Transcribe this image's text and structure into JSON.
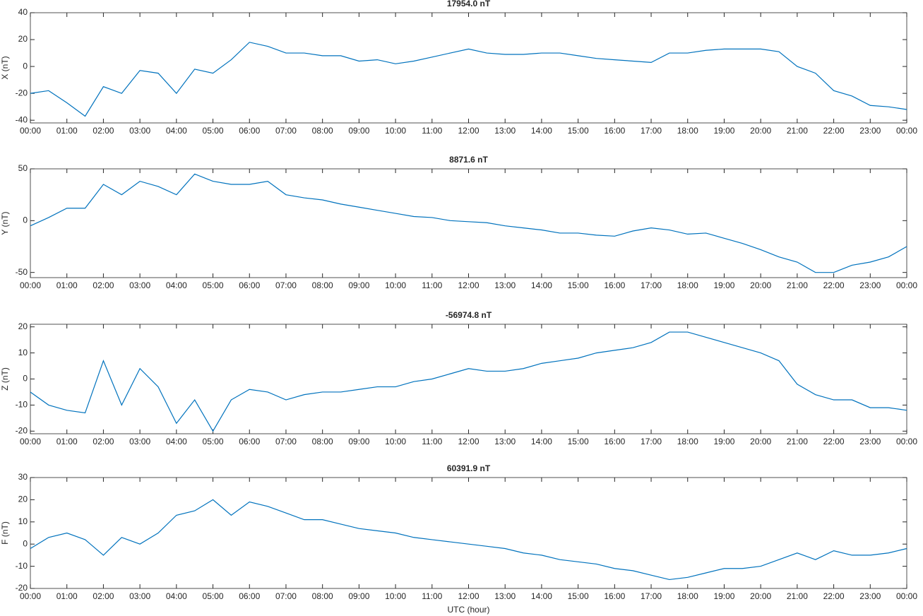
{
  "chart_data": [
    {
      "type": "line",
      "title": "17954.0 nT",
      "y_label": "X (nT)",
      "color": "#0072bd",
      "x": [
        0,
        0.5,
        1,
        1.5,
        2,
        2.5,
        3,
        3.5,
        4,
        4.5,
        5,
        5.5,
        6,
        6.5,
        7,
        7.5,
        8,
        8.5,
        9,
        9.5,
        10,
        10.5,
        11,
        11.5,
        12,
        12.5,
        13,
        13.5,
        14,
        14.5,
        15,
        15.5,
        16,
        16.5,
        17,
        17.5,
        18,
        18.5,
        19,
        19.5,
        20,
        20.5,
        21,
        21.5,
        22,
        22.5,
        23,
        23.5,
        24
      ],
      "values": [
        -20,
        -18,
        -27,
        -37,
        -15,
        -20,
        -3,
        -5,
        -20,
        -2,
        -5,
        5,
        18,
        15,
        10,
        10,
        8,
        8,
        4,
        5,
        2,
        4,
        7,
        10,
        13,
        10,
        9,
        9,
        10,
        10,
        8,
        6,
        5,
        4,
        3,
        10,
        10,
        12,
        13,
        13,
        13,
        11,
        0,
        -5,
        -18,
        -22,
        -29,
        -30,
        -32
      ],
      "xlim": [
        0,
        24
      ],
      "ylim": [
        -42,
        40
      ],
      "yticks": [
        -40,
        -20,
        0,
        20,
        40
      ],
      "xticks": [
        {
          "value": 0,
          "label": "00:00"
        },
        {
          "value": 1,
          "label": "01:00"
        },
        {
          "value": 2,
          "label": "02:00"
        },
        {
          "value": 3,
          "label": "03:00"
        },
        {
          "value": 4,
          "label": "04:00"
        },
        {
          "value": 5,
          "label": "05:00"
        },
        {
          "value": 6,
          "label": "06:00"
        },
        {
          "value": 7,
          "label": "07:00"
        },
        {
          "value": 8,
          "label": "08:00"
        },
        {
          "value": 9,
          "label": "09:00"
        },
        {
          "value": 10,
          "label": "10:00"
        },
        {
          "value": 11,
          "label": "11:00"
        },
        {
          "value": 12,
          "label": "12:00"
        },
        {
          "value": 13,
          "label": "13:00"
        },
        {
          "value": 14,
          "label": "14:00"
        },
        {
          "value": 15,
          "label": "15:00"
        },
        {
          "value": 16,
          "label": "16:00"
        },
        {
          "value": 17,
          "label": "17:00"
        },
        {
          "value": 18,
          "label": "18:00"
        },
        {
          "value": 19,
          "label": "19:00"
        },
        {
          "value": 20,
          "label": "20:00"
        },
        {
          "value": 21,
          "label": "21:00"
        },
        {
          "value": 22,
          "label": "22:00"
        },
        {
          "value": 23,
          "label": "23:00"
        },
        {
          "value": 24,
          "label": "00:00"
        }
      ]
    },
    {
      "type": "line",
      "title": "8871.6 nT",
      "y_label": "Y (nT)",
      "color": "#0072bd",
      "x": [
        0,
        0.5,
        1,
        1.5,
        2,
        2.5,
        3,
        3.5,
        4,
        4.5,
        5,
        5.5,
        6,
        6.5,
        7,
        7.5,
        8,
        8.5,
        9,
        9.5,
        10,
        10.5,
        11,
        11.5,
        12,
        12.5,
        13,
        13.5,
        14,
        14.5,
        15,
        15.5,
        16,
        16.5,
        17,
        17.5,
        18,
        18.5,
        19,
        19.5,
        20,
        20.5,
        21,
        21.5,
        22,
        22.5,
        23,
        23.5,
        24
      ],
      "values": [
        -5,
        3,
        12,
        12,
        35,
        25,
        38,
        33,
        25,
        45,
        38,
        35,
        35,
        38,
        25,
        22,
        20,
        16,
        13,
        10,
        7,
        4,
        3,
        0,
        -1,
        -2,
        -5,
        -7,
        -9,
        -12,
        -12,
        -14,
        -15,
        -10,
        -7,
        -9,
        -13,
        -12,
        -17,
        -22,
        -28,
        -35,
        -40,
        -50,
        -50,
        -43,
        -40,
        -35,
        -25
      ],
      "xlim": [
        0,
        24
      ],
      "ylim": [
        -55,
        50
      ],
      "yticks": [
        -50,
        0,
        50
      ],
      "xticks": [
        {
          "value": 0,
          "label": "00:00"
        },
        {
          "value": 1,
          "label": "01:00"
        },
        {
          "value": 2,
          "label": "02:00"
        },
        {
          "value": 3,
          "label": "03:00"
        },
        {
          "value": 4,
          "label": "04:00"
        },
        {
          "value": 5,
          "label": "05:00"
        },
        {
          "value": 6,
          "label": "06:00"
        },
        {
          "value": 7,
          "label": "07:00"
        },
        {
          "value": 8,
          "label": "08:00"
        },
        {
          "value": 9,
          "label": "09:00"
        },
        {
          "value": 10,
          "label": "10:00"
        },
        {
          "value": 11,
          "label": "11:00"
        },
        {
          "value": 12,
          "label": "12:00"
        },
        {
          "value": 13,
          "label": "13:00"
        },
        {
          "value": 14,
          "label": "14:00"
        },
        {
          "value": 15,
          "label": "15:00"
        },
        {
          "value": 16,
          "label": "16:00"
        },
        {
          "value": 17,
          "label": "17:00"
        },
        {
          "value": 18,
          "label": "18:00"
        },
        {
          "value": 19,
          "label": "19:00"
        },
        {
          "value": 20,
          "label": "20:00"
        },
        {
          "value": 21,
          "label": "21:00"
        },
        {
          "value": 22,
          "label": "22:00"
        },
        {
          "value": 23,
          "label": "23:00"
        },
        {
          "value": 24,
          "label": "00:00"
        }
      ]
    },
    {
      "type": "line",
      "title": "-56974.8 nT",
      "y_label": "Z (nT)",
      "color": "#0072bd",
      "x": [
        0,
        0.5,
        1,
        1.5,
        2,
        2.5,
        3,
        3.5,
        4,
        4.5,
        5,
        5.5,
        6,
        6.5,
        7,
        7.5,
        8,
        8.5,
        9,
        9.5,
        10,
        10.5,
        11,
        11.5,
        12,
        12.5,
        13,
        13.5,
        14,
        14.5,
        15,
        15.5,
        16,
        16.5,
        17,
        17.5,
        18,
        18.5,
        19,
        19.5,
        20,
        20.5,
        21,
        21.5,
        22,
        22.5,
        23,
        23.5,
        24
      ],
      "values": [
        -5,
        -10,
        -12,
        -13,
        7,
        -10,
        4,
        -3,
        -17,
        -8,
        -20,
        -8,
        -4,
        -5,
        -8,
        -6,
        -5,
        -5,
        -4,
        -3,
        -3,
        -1,
        0,
        2,
        4,
        3,
        3,
        4,
        6,
        7,
        8,
        10,
        11,
        12,
        14,
        18,
        18,
        16,
        14,
        12,
        10,
        7,
        -2,
        -6,
        -8,
        -8,
        -11,
        -11,
        -12
      ],
      "xlim": [
        0,
        24
      ],
      "ylim": [
        -21,
        21
      ],
      "yticks": [
        -20,
        -10,
        0,
        10,
        20
      ],
      "xticks": [
        {
          "value": 0,
          "label": "00:00"
        },
        {
          "value": 1,
          "label": "01:00"
        },
        {
          "value": 2,
          "label": "02:00"
        },
        {
          "value": 3,
          "label": "03:00"
        },
        {
          "value": 4,
          "label": "04:00"
        },
        {
          "value": 5,
          "label": "05:00"
        },
        {
          "value": 6,
          "label": "06:00"
        },
        {
          "value": 7,
          "label": "07:00"
        },
        {
          "value": 8,
          "label": "08:00"
        },
        {
          "value": 9,
          "label": "09:00"
        },
        {
          "value": 10,
          "label": "10:00"
        },
        {
          "value": 11,
          "label": "11:00"
        },
        {
          "value": 12,
          "label": "12:00"
        },
        {
          "value": 13,
          "label": "13:00"
        },
        {
          "value": 14,
          "label": "14:00"
        },
        {
          "value": 15,
          "label": "15:00"
        },
        {
          "value": 16,
          "label": "16:00"
        },
        {
          "value": 17,
          "label": "17:00"
        },
        {
          "value": 18,
          "label": "18:00"
        },
        {
          "value": 19,
          "label": "19:00"
        },
        {
          "value": 20,
          "label": "20:00"
        },
        {
          "value": 21,
          "label": "21:00"
        },
        {
          "value": 22,
          "label": "22:00"
        },
        {
          "value": 23,
          "label": "23:00"
        },
        {
          "value": 24,
          "label": "00:00"
        }
      ]
    },
    {
      "type": "line",
      "title": "60391.9 nT",
      "y_label": "F (nT)",
      "x_label": "UTC (hour)",
      "color": "#0072bd",
      "x": [
        0,
        0.5,
        1,
        1.5,
        2,
        2.5,
        3,
        3.5,
        4,
        4.5,
        5,
        5.5,
        6,
        6.5,
        7,
        7.5,
        8,
        8.5,
        9,
        9.5,
        10,
        10.5,
        11,
        11.5,
        12,
        12.5,
        13,
        13.5,
        14,
        14.5,
        15,
        15.5,
        16,
        16.5,
        17,
        17.5,
        18,
        18.5,
        19,
        19.5,
        20,
        20.5,
        21,
        21.5,
        22,
        22.5,
        23,
        23.5,
        24
      ],
      "values": [
        -2,
        3,
        5,
        2,
        -5,
        3,
        0,
        5,
        13,
        15,
        20,
        13,
        19,
        17,
        14,
        11,
        11,
        9,
        7,
        6,
        5,
        3,
        2,
        1,
        0,
        -1,
        -2,
        -4,
        -5,
        -7,
        -8,
        -9,
        -11,
        -12,
        -14,
        -16,
        -15,
        -13,
        -11,
        -11,
        -10,
        -7,
        -4,
        -7,
        -3,
        -5,
        -5,
        -4,
        -2
      ],
      "xlim": [
        0,
        24
      ],
      "ylim": [
        -20,
        30
      ],
      "yticks": [
        -20,
        -10,
        0,
        10,
        20,
        30
      ],
      "xticks": [
        {
          "value": 0,
          "label": "00:00"
        },
        {
          "value": 1,
          "label": "01:00"
        },
        {
          "value": 2,
          "label": "02:00"
        },
        {
          "value": 3,
          "label": "03:00"
        },
        {
          "value": 4,
          "label": "04:00"
        },
        {
          "value": 5,
          "label": "05:00"
        },
        {
          "value": 6,
          "label": "06:00"
        },
        {
          "value": 7,
          "label": "07:00"
        },
        {
          "value": 8,
          "label": "08:00"
        },
        {
          "value": 9,
          "label": "09:00"
        },
        {
          "value": 10,
          "label": "10:00"
        },
        {
          "value": 11,
          "label": "11:00"
        },
        {
          "value": 12,
          "label": "12:00"
        },
        {
          "value": 13,
          "label": "13:00"
        },
        {
          "value": 14,
          "label": "14:00"
        },
        {
          "value": 15,
          "label": "15:00"
        },
        {
          "value": 16,
          "label": "16:00"
        },
        {
          "value": 17,
          "label": "17:00"
        },
        {
          "value": 18,
          "label": "18:00"
        },
        {
          "value": 19,
          "label": "19:00"
        },
        {
          "value": 20,
          "label": "20:00"
        },
        {
          "value": 21,
          "label": "21:00"
        },
        {
          "value": 22,
          "label": "22:00"
        },
        {
          "value": 23,
          "label": "23:00"
        },
        {
          "value": 24,
          "label": "00:00"
        }
      ]
    }
  ]
}
